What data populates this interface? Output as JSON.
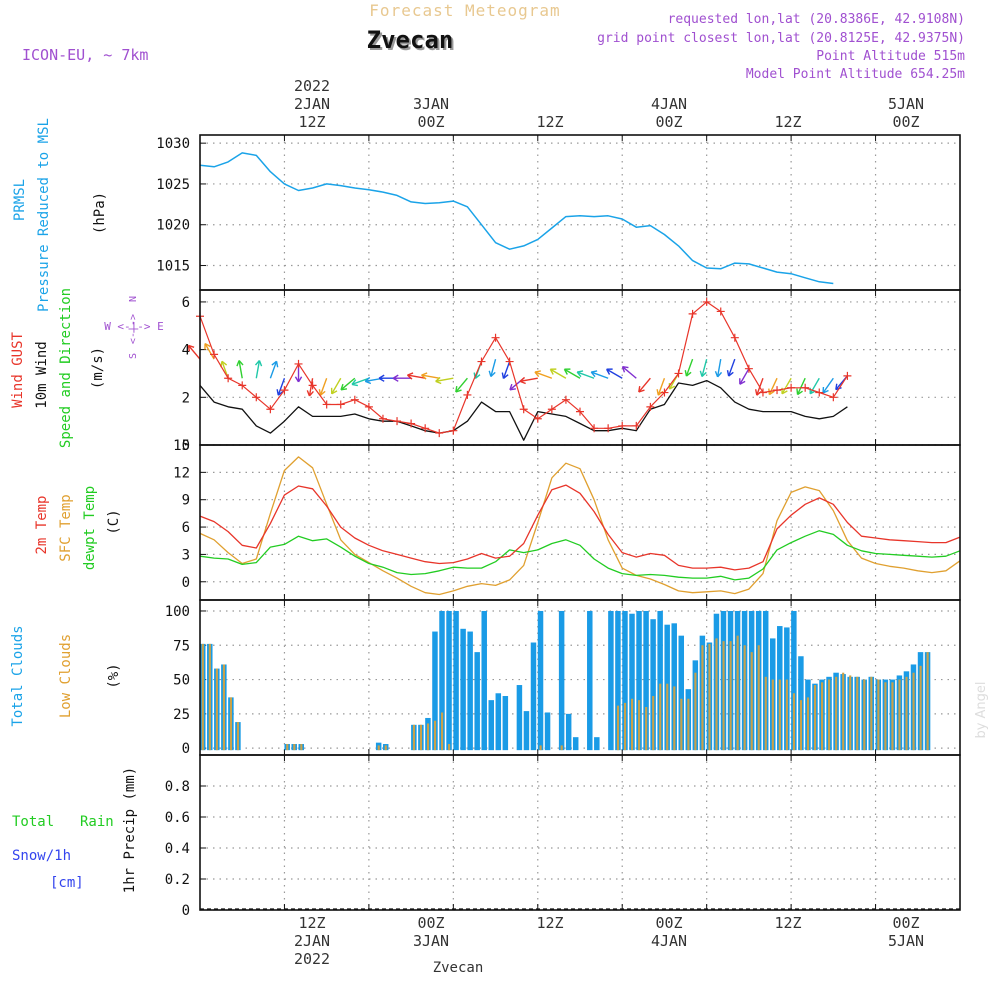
{
  "header": {
    "title": "Forecast Meteogram",
    "location": "Zvecan",
    "model": "ICON-EU, ~ 7km",
    "requested": "requested lon,lat (20.8386E, 42.9108N)",
    "gridpoint": "grid point closest lon,lat (20.8125E, 42.9375N)",
    "point_altitude": "Point Altitude 515m",
    "model_altitude": "Model Point Altitude 654.25m",
    "watermark": "by Angel",
    "footer": "Zvecan"
  },
  "time_axis": {
    "top": [
      {
        "line1": "2022",
        "line2": "2JAN",
        "line3": "12Z"
      },
      {
        "line1": "",
        "line2": "3JAN",
        "line3": "00Z"
      },
      {
        "line1": "",
        "line2": "",
        "line3": "12Z"
      },
      {
        "line1": "",
        "line2": "4JAN",
        "line3": "00Z"
      },
      {
        "line1": "",
        "line2": "",
        "line3": "12Z"
      },
      {
        "line1": "",
        "line2": "5JAN",
        "line3": "00Z"
      }
    ],
    "bottom": [
      {
        "line1": "12Z",
        "line2": "2JAN",
        "line3": "2022"
      },
      {
        "line1": "00Z",
        "line2": "3JAN",
        "line3": ""
      },
      {
        "line1": "12Z",
        "line2": "",
        "line3": ""
      },
      {
        "line1": "00Z",
        "line2": "4JAN",
        "line3": ""
      },
      {
        "line1": "12Z",
        "line2": "",
        "line3": ""
      },
      {
        "line1": "00Z",
        "line2": "5JAN",
        "line3": ""
      }
    ]
  },
  "panels": {
    "pressure": {
      "label1": "PRMSL",
      "label2": "Pressure Reduced to MSL",
      "unit": "(hPa)"
    },
    "wind": {
      "label1": "Wind GUST",
      "label2": "10m Wind",
      "label3": "Speed and Direction",
      "unit": "(m/s)",
      "compass_n": "N",
      "compass_s": "S",
      "compass_we": "W <-|-> E"
    },
    "temp": {
      "label1": "2m Temp",
      "label2": "SFC Temp",
      "label3": "dewpt Temp",
      "unit": "(C)"
    },
    "clouds": {
      "label1": "Total Clouds",
      "label2": "Low Clouds",
      "unit": "(%)"
    },
    "precip": {
      "label1": "Total",
      "label2": "Rain",
      "label3": "Snow/1h",
      "label4": "[cm]",
      "unit": "1hr Precip (mm)"
    }
  },
  "colors": {
    "pressure": "#1aa3e8",
    "gust": "#e8352a",
    "wind": "#111111",
    "temp2m": "#e8352a",
    "sfc": "#e0a030",
    "dewpt": "#22cc22",
    "total_cloud": "#1a9be6",
    "low_cloud": "#c9a24a",
    "rain": "#22cc22",
    "snow": "#3344ee",
    "purple": "#a050d0",
    "cyan": "#1aa3e8"
  },
  "chart_data": [
    {
      "type": "line",
      "name": "pressure",
      "title": "Pressure Reduced to MSL",
      "ylabel": "hPa",
      "x_start_hour": 0,
      "x_step_hours": 2,
      "ylim": [
        1012,
        1031
      ],
      "yticks": [
        1015,
        1020,
        1025,
        1030
      ],
      "series": [
        {
          "name": "PRMSL",
          "values": [
            1027.3,
            1027.1,
            1027.7,
            1028.8,
            1028.5,
            1026.5,
            1025.0,
            1024.2,
            1024.5,
            1025.0,
            1024.8,
            1024.5,
            1024.3,
            1024.0,
            1023.6,
            1022.8,
            1022.6,
            1022.7,
            1022.9,
            1022.2,
            1020.0,
            1017.8,
            1017.0,
            1017.4,
            1018.2,
            1019.6,
            1021.0,
            1021.1,
            1021.0,
            1021.1,
            1020.7,
            1019.7,
            1019.9,
            1018.8,
            1017.4,
            1015.6,
            1014.7,
            1014.6,
            1015.3,
            1015.2,
            1014.7,
            1014.2,
            1014.0,
            1013.5,
            1013.0,
            1012.8
          ]
        }
      ]
    },
    {
      "type": "line",
      "name": "wind",
      "title": "Wind GUST / 10m Wind",
      "ylabel": "m/s",
      "x_start_hour": 0,
      "x_step_hours": 2,
      "ylim": [
        0,
        6.5
      ],
      "yticks": [
        0,
        2,
        4,
        6
      ],
      "series": [
        {
          "name": "Wind GUST",
          "values": [
            5.4,
            3.8,
            2.8,
            2.5,
            2.0,
            1.5,
            2.3,
            3.4,
            2.5,
            1.7,
            1.7,
            1.9,
            1.6,
            1.1,
            1.0,
            0.9,
            0.7,
            0.5,
            0.6,
            2.1,
            3.5,
            4.5,
            3.5,
            1.5,
            1.1,
            1.5,
            1.9,
            1.4,
            0.7,
            0.7,
            0.8,
            0.8,
            1.6,
            2.2,
            3.0,
            5.5,
            6.0,
            5.6,
            4.5,
            3.2,
            2.2,
            2.3,
            2.4,
            2.4,
            2.2,
            2.0,
            2.9
          ]
        },
        {
          "name": "10m Wind",
          "values": [
            2.5,
            1.8,
            1.6,
            1.5,
            0.8,
            0.5,
            1.0,
            1.6,
            1.2,
            1.2,
            1.2,
            1.3,
            1.1,
            1.0,
            1.0,
            0.8,
            0.6,
            0.5,
            0.6,
            1.0,
            1.8,
            1.4,
            1.4,
            0.2,
            1.4,
            1.3,
            1.2,
            0.9,
            0.6,
            0.6,
            0.7,
            0.6,
            1.5,
            1.7,
            2.6,
            2.5,
            2.7,
            2.4,
            1.8,
            1.5,
            1.4,
            1.4,
            1.4,
            1.2,
            1.1,
            1.2,
            1.6
          ]
        },
        {
          "name": "arrows_dir_deg",
          "values": [
            320,
            330,
            340,
            350,
            10,
            20,
            200,
            180,
            190,
            200,
            210,
            230,
            250,
            260,
            270,
            270,
            280,
            280,
            260,
            220,
            200,
            195,
            200,
            230,
            260,
            290,
            300,
            300,
            290,
            290,
            300,
            310,
            220,
            200,
            210,
            200,
            195,
            190,
            200,
            210,
            200,
            205,
            210,
            205,
            210,
            215,
            220
          ]
        }
      ]
    },
    {
      "type": "line",
      "name": "temperature",
      "title": "2m / SFC / dewpt Temp",
      "ylabel": "C",
      "x_start_hour": 0,
      "x_step_hours": 2,
      "ylim": [
        -2,
        15
      ],
      "yticks": [
        0,
        3,
        6,
        9,
        12,
        15
      ],
      "series": [
        {
          "name": "2m Temp",
          "values": [
            7.2,
            6.6,
            5.5,
            4.0,
            3.7,
            6.4,
            9.5,
            10.5,
            10.2,
            8.3,
            6.0,
            4.8,
            4.0,
            3.4,
            3.0,
            2.6,
            2.2,
            2.0,
            2.1,
            2.5,
            3.1,
            2.6,
            2.8,
            4.2,
            7.3,
            10.1,
            10.6,
            9.7,
            7.7,
            5.2,
            3.2,
            2.7,
            3.1,
            2.9,
            1.8,
            1.5,
            1.5,
            1.6,
            1.3,
            1.5,
            2.2,
            5.8,
            7.3,
            8.5,
            9.2,
            8.5,
            6.5,
            5.0,
            4.8,
            4.6,
            4.5,
            4.4,
            4.3,
            4.3,
            4.9
          ]
        },
        {
          "name": "SFC Temp",
          "values": [
            5.3,
            4.6,
            3.2,
            2.0,
            2.5,
            7.5,
            12.2,
            13.7,
            12.5,
            8.5,
            4.6,
            3.0,
            2.1,
            1.2,
            0.4,
            -0.5,
            -1.2,
            -1.4,
            -1.0,
            -0.5,
            -0.2,
            -0.4,
            0.2,
            1.8,
            6.5,
            11.4,
            13.0,
            12.4,
            9.0,
            4.6,
            1.5,
            0.7,
            0.3,
            -0.3,
            -1.0,
            -1.2,
            -1.1,
            -1.0,
            -1.3,
            -0.8,
            0.9,
            6.7,
            9.8,
            10.4,
            10.0,
            7.8,
            4.5,
            2.6,
            2.0,
            1.7,
            1.5,
            1.2,
            1.0,
            1.2,
            2.3
          ]
        },
        {
          "name": "dewpt Temp",
          "values": [
            2.8,
            2.6,
            2.5,
            1.9,
            2.1,
            3.8,
            4.1,
            5.0,
            4.5,
            4.7,
            3.8,
            2.8,
            2.0,
            1.6,
            1.0,
            0.8,
            0.9,
            1.2,
            1.6,
            1.5,
            1.5,
            2.2,
            3.5,
            3.2,
            3.5,
            4.2,
            4.6,
            4.0,
            2.5,
            1.5,
            0.9,
            0.7,
            0.8,
            0.7,
            0.5,
            0.4,
            0.4,
            0.6,
            0.2,
            0.4,
            1.4,
            3.5,
            4.3,
            5.0,
            5.6,
            5.2,
            4.0,
            3.4,
            3.1,
            3.0,
            2.9,
            2.8,
            2.7,
            2.8,
            3.4
          ]
        }
      ]
    },
    {
      "type": "bar",
      "name": "clouds",
      "title": "Total Clouds / Low Clouds",
      "ylabel": "%",
      "x_start_hour": 0,
      "x_step_hours": 1,
      "ylim": [
        -5,
        108
      ],
      "yticks": [
        0,
        25,
        50,
        75,
        100
      ],
      "series": [
        {
          "name": "Total Clouds",
          "values": [
            76,
            76,
            58,
            61,
            37,
            19,
            0,
            0,
            0,
            0,
            0,
            0,
            3,
            3,
            3,
            0,
            0,
            0,
            0,
            0,
            0,
            0,
            0,
            0,
            0,
            4,
            3,
            0,
            0,
            0,
            17,
            17,
            22,
            85,
            100,
            100,
            100,
            87,
            85,
            70,
            100,
            35,
            40,
            38,
            0,
            46,
            27,
            77,
            100,
            26,
            0,
            100,
            25,
            8,
            0,
            100,
            8,
            0,
            100,
            100,
            100,
            98,
            100,
            100,
            94,
            100,
            90,
            91,
            82,
            43,
            64,
            82,
            77,
            98,
            100,
            100,
            100,
            100,
            100,
            100,
            100,
            80,
            89,
            88,
            100,
            67,
            50,
            47,
            50,
            52,
            55,
            54,
            52,
            52,
            50,
            52,
            50,
            50,
            50,
            53,
            56,
            61,
            70,
            70
          ]
        },
        {
          "name": "Low Clouds",
          "values": [
            76,
            76,
            58,
            61,
            37,
            19,
            0,
            0,
            0,
            0,
            0,
            0,
            3,
            3,
            3,
            0,
            0,
            0,
            0,
            0,
            0,
            0,
            0,
            0,
            0,
            2,
            2,
            0,
            0,
            0,
            17,
            17,
            18,
            20,
            26,
            3,
            0,
            0,
            0,
            0,
            0,
            0,
            0,
            0,
            0,
            0,
            0,
            0,
            2,
            0,
            0,
            2,
            0,
            0,
            0,
            0,
            0,
            0,
            0,
            31,
            33,
            36,
            35,
            30,
            38,
            47,
            47,
            45,
            36,
            36,
            55,
            75,
            76,
            80,
            78,
            78,
            82,
            75,
            70,
            75,
            52,
            50,
            50,
            50,
            40,
            35,
            37,
            46,
            48,
            50,
            52,
            55,
            53,
            52,
            50,
            52,
            50,
            48,
            48,
            50,
            52,
            55,
            60,
            70
          ]
        }
      ]
    },
    {
      "type": "bar",
      "name": "precipitation",
      "title": "1hr Precip",
      "ylabel": "mm",
      "x_start_hour": 0,
      "x_step_hours": 1,
      "ylim": [
        0,
        1.0
      ],
      "yticks": [
        0,
        0.2,
        0.4,
        0.6,
        0.8
      ],
      "ytick_labels": [
        "0",
        "0.2",
        "0.4",
        "0.6",
        "0.8"
      ],
      "series": [
        {
          "name": "Total Rain",
          "values": []
        },
        {
          "name": "Snow/1h",
          "values": []
        }
      ]
    }
  ]
}
